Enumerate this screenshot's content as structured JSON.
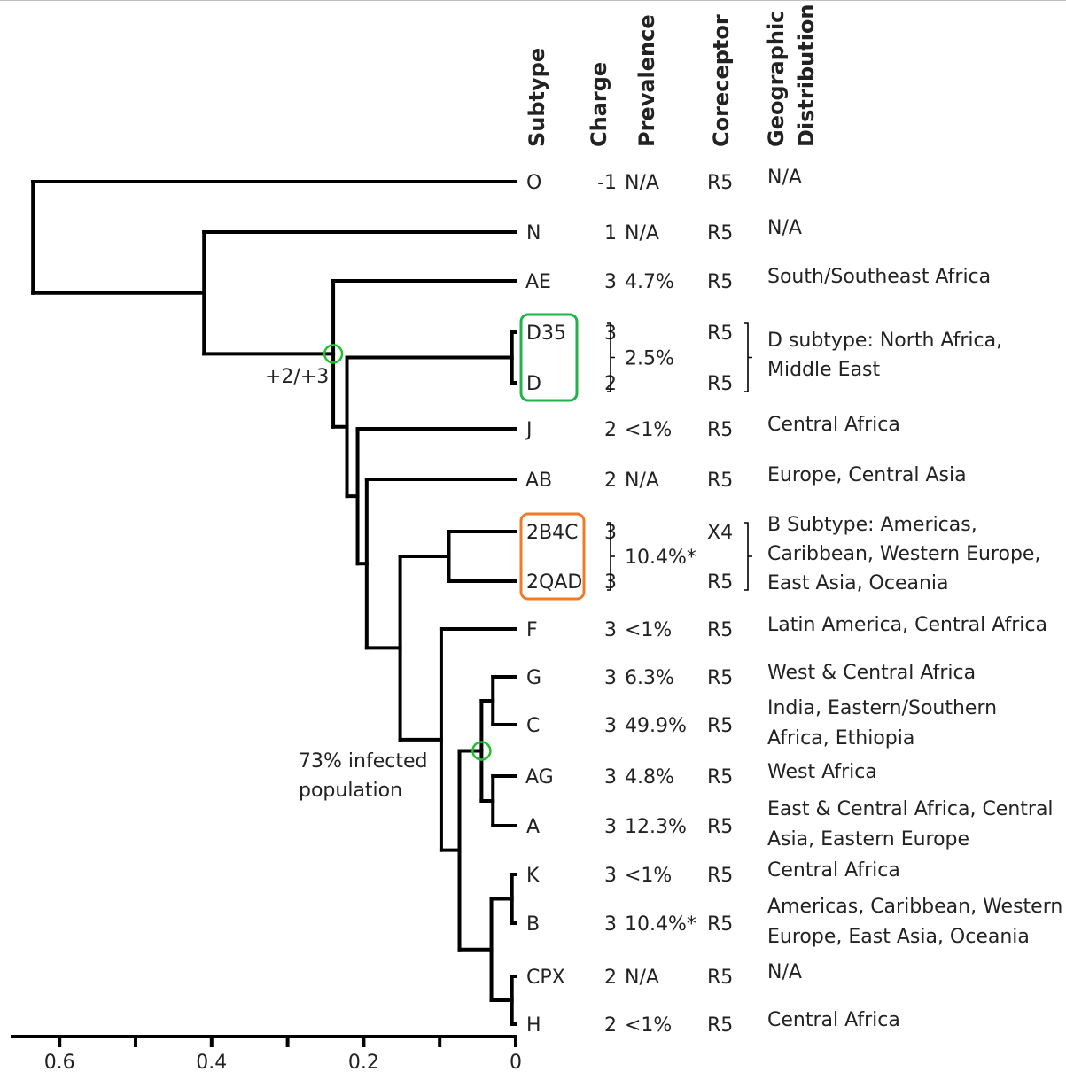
{
  "headers": {
    "subtype": "Subtype",
    "charge": "Charge",
    "prevalence": "Prevalence",
    "coreceptor": "Coreceptor",
    "geo_line1": "Geographic",
    "geo_line2": "Distribution"
  },
  "rows": [
    {
      "subtype": "O",
      "charge": "-1",
      "prevalence": "N/A",
      "coreceptor": "R5",
      "geo": [
        "N/A"
      ]
    },
    {
      "subtype": "N",
      "charge": "1",
      "prevalence": "N/A",
      "coreceptor": "R5",
      "geo": [
        "N/A"
      ]
    },
    {
      "subtype": "AE",
      "charge": "3",
      "prevalence": "4.7%",
      "coreceptor": "R5",
      "geo": [
        "South/Southeast Africa"
      ]
    },
    {
      "subtype": "D35",
      "charge": "3",
      "prevalence": "",
      "coreceptor": "R5",
      "geo": []
    },
    {
      "subtype": "D",
      "charge": "2",
      "prevalence": "",
      "coreceptor": "R5",
      "geo": []
    },
    {
      "subtype": "J",
      "charge": "2",
      "prevalence": "<1%",
      "coreceptor": "R5",
      "geo": [
        "Central Africa"
      ]
    },
    {
      "subtype": "AB",
      "charge": "2",
      "prevalence": "N/A",
      "coreceptor": "R5",
      "geo": [
        "Europe, Central Asia"
      ]
    },
    {
      "subtype": "2B4C",
      "charge": "3",
      "prevalence": "",
      "coreceptor": "X4",
      "geo": []
    },
    {
      "subtype": "2QAD",
      "charge": "3",
      "prevalence": "",
      "coreceptor": "R5",
      "geo": []
    },
    {
      "subtype": "F",
      "charge": "3",
      "prevalence": "<1%",
      "coreceptor": "R5",
      "geo": [
        "Latin America, Central Africa"
      ]
    },
    {
      "subtype": "G",
      "charge": "3",
      "prevalence": "6.3%",
      "coreceptor": "R5",
      "geo": [
        "West & Central Africa"
      ]
    },
    {
      "subtype": "C",
      "charge": "3",
      "prevalence": "49.9%",
      "coreceptor": "R5",
      "geo": [
        "India, Eastern/Southern",
        "Africa, Ethiopia"
      ]
    },
    {
      "subtype": "AG",
      "charge": "3",
      "prevalence": "4.8%",
      "coreceptor": "R5",
      "geo": [
        "West Africa"
      ]
    },
    {
      "subtype": "A",
      "charge": "3",
      "prevalence": "12.3%",
      "coreceptor": "R5",
      "geo": [
        "East & Central Africa, Central",
        "Asia, Eastern Europe"
      ]
    },
    {
      "subtype": "K",
      "charge": "3",
      "prevalence": "<1%",
      "coreceptor": "R5",
      "geo": [
        "Central Africa"
      ]
    },
    {
      "subtype": "B",
      "charge": "3",
      "prevalence": "10.4%*",
      "coreceptor": "R5",
      "geo": [
        "Americas, Caribbean, Western",
        "Europe, East Asia, Oceania"
      ]
    },
    {
      "subtype": "CPX",
      "charge": "2",
      "prevalence": "N/A",
      "coreceptor": "R5",
      "geo": [
        "N/A"
      ]
    },
    {
      "subtype": "H",
      "charge": "2",
      "prevalence": "<1%",
      "coreceptor": "R5",
      "geo": [
        "Central Africa"
      ]
    }
  ],
  "groups": [
    {
      "id": "D",
      "rows": [
        3,
        4
      ],
      "prevalence": "2.5%",
      "geo": [
        "D subtype: North Africa,",
        "Middle East"
      ],
      "color": "#22b24c"
    },
    {
      "id": "B",
      "rows": [
        7,
        8
      ],
      "prevalence": "10.4%*",
      "geo": [
        "B Subtype: Americas,",
        "Caribbean, Western Europe,",
        "East Asia, Oceania"
      ],
      "color": "#f07a2a"
    }
  ],
  "annotations": {
    "charge_shift": "+2/+3",
    "infected_line1": "73% infected",
    "infected_line2": "population",
    "marker_color": "#22c02c"
  },
  "axis": {
    "ticks": [
      0.6,
      0.4,
      0.2,
      0
    ],
    "tick_labels": [
      "0.6",
      "0.4",
      "0.2",
      "0"
    ]
  },
  "tree": {
    "nodes": [
      {
        "id": "leaf-O",
        "leaf": 0
      },
      {
        "id": "leaf-N",
        "leaf": 1
      },
      {
        "id": "leaf-AE",
        "leaf": 2
      },
      {
        "id": "leaf-D35",
        "leaf": 3
      },
      {
        "id": "leaf-D",
        "leaf": 4
      },
      {
        "id": "leaf-J",
        "leaf": 5
      },
      {
        "id": "leaf-AB",
        "leaf": 6
      },
      {
        "id": "leaf-2B4C",
        "leaf": 7
      },
      {
        "id": "leaf-2QAD",
        "leaf": 8
      },
      {
        "id": "leaf-F",
        "leaf": 9
      },
      {
        "id": "leaf-G",
        "leaf": 10
      },
      {
        "id": "leaf-C",
        "leaf": 11
      },
      {
        "id": "leaf-AG",
        "leaf": 12
      },
      {
        "id": "leaf-A",
        "leaf": 13
      },
      {
        "id": "leaf-K",
        "leaf": 14
      },
      {
        "id": "leaf-B",
        "leaf": 15
      },
      {
        "id": "leaf-CPX",
        "leaf": 16
      },
      {
        "id": "leaf-H",
        "leaf": 17
      },
      {
        "id": "n-D",
        "height": 0.005,
        "children": [
          "leaf-D35",
          "leaf-D"
        ]
      },
      {
        "id": "n-2B",
        "height": 0.088,
        "children": [
          "leaf-2B4C",
          "leaf-2QAD"
        ]
      },
      {
        "id": "n-G-C",
        "height": 0.03,
        "children": [
          "leaf-G",
          "leaf-C"
        ]
      },
      {
        "id": "n-AG-A",
        "height": 0.03,
        "children": [
          "leaf-AG",
          "leaf-A"
        ]
      },
      {
        "id": "n-GCAGA",
        "height": 0.045,
        "children": [
          "n-G-C",
          "n-AG-A"
        ],
        "marker": true
      },
      {
        "id": "n-K-B",
        "height": 0.005,
        "children": [
          "leaf-K",
          "leaf-B"
        ]
      },
      {
        "id": "n-CPX-H",
        "height": 0.005,
        "children": [
          "leaf-CPX",
          "leaf-H"
        ]
      },
      {
        "id": "n-KBCH",
        "height": 0.032,
        "children": [
          "n-K-B",
          "n-CPX-H"
        ]
      },
      {
        "id": "n-core",
        "height": 0.074,
        "children": [
          "n-GCAGA",
          "n-KBCH"
        ]
      },
      {
        "id": "n-F",
        "height": 0.098,
        "children": [
          "leaf-F",
          "n-core"
        ]
      },
      {
        "id": "n-main",
        "height": 0.152,
        "children": [
          "n-2B",
          "n-F"
        ]
      },
      {
        "id": "n-AB",
        "height": 0.196,
        "children": [
          "leaf-AB",
          "n-main"
        ]
      },
      {
        "id": "n-J",
        "height": 0.208,
        "children": [
          "leaf-J",
          "n-AB"
        ]
      },
      {
        "id": "n-DJ",
        "height": 0.222,
        "children": [
          "n-D",
          "n-J"
        ]
      },
      {
        "id": "n-AE",
        "height": 0.24,
        "children": [
          "leaf-AE",
          "n-DJ"
        ],
        "marker": true
      },
      {
        "id": "n-N",
        "height": 0.41,
        "children": [
          "leaf-N",
          "n-AE"
        ]
      },
      {
        "id": "root",
        "height": 0.635,
        "children": [
          "leaf-O",
          "n-N"
        ]
      }
    ]
  }
}
